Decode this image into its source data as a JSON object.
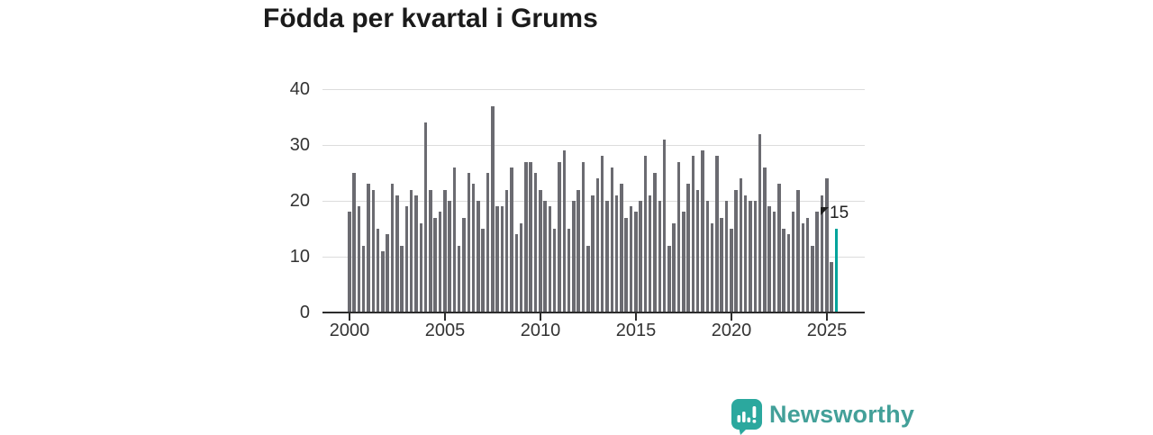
{
  "title": "Födda per kvartal i Grums",
  "annotation": {
    "label": "15"
  },
  "branding": {
    "name": "Newsworthy",
    "icon": "newsworthy-chart-bubble-icon"
  },
  "colors": {
    "bar": "#6b6b71",
    "accent": "#00a39b",
    "grid": "#dcdcdc",
    "axis": "#2d2d2d",
    "tick_text": "#333333",
    "title_text": "#1b1b1b",
    "brand_teal": "#43a099"
  },
  "chart_data": {
    "type": "bar",
    "title": "Födda per kvartal i Grums",
    "x_unit": "quarter",
    "start_quarter": "2000 Q1",
    "end_quarter": "2025 Q3",
    "x_tick_labels": [
      "2000",
      "2005",
      "2010",
      "2015",
      "2020",
      "2025"
    ],
    "y_ticks": [
      0,
      10,
      20,
      30,
      40
    ],
    "ylim": [
      0,
      40
    ],
    "grid": true,
    "values": [
      18,
      25,
      19,
      12,
      23,
      22,
      15,
      11,
      14,
      23,
      21,
      12,
      19,
      22,
      21,
      16,
      34,
      22,
      17,
      18,
      22,
      20,
      26,
      12,
      17,
      25,
      23,
      20,
      15,
      25,
      37,
      19,
      19,
      22,
      26,
      14,
      16,
      27,
      27,
      25,
      22,
      20,
      19,
      15,
      27,
      29,
      15,
      20,
      22,
      27,
      12,
      21,
      24,
      28,
      20,
      26,
      21,
      23,
      17,
      19,
      18,
      20,
      28,
      21,
      25,
      20,
      31,
      12,
      16,
      27,
      18,
      23,
      28,
      22,
      29,
      20,
      16,
      28,
      17,
      20,
      15,
      22,
      24,
      21,
      20,
      20,
      32,
      26,
      19,
      18,
      23,
      15,
      14,
      18,
      22,
      16,
      17,
      12,
      18,
      21,
      24,
      9,
      15
    ],
    "highlight_last": true,
    "last_value_label": "15"
  }
}
